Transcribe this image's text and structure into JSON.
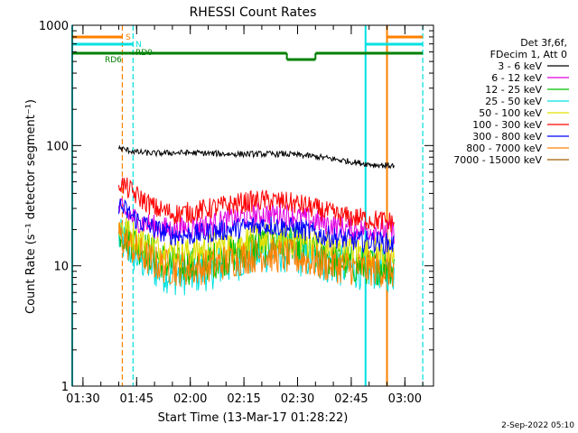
{
  "chart_data": {
    "type": "line",
    "title": "RHESSI Count Rates",
    "xlabel": "Start Time (13-Mar-17 01:28:22)",
    "ylabel": "Count Rate (s⁻¹ detector segment⁻¹)",
    "y_scale": "log",
    "ylim": [
      1,
      1000
    ],
    "xlim": [
      "01:27",
      "03:08"
    ],
    "x_ticks": [
      "01:30",
      "01:45",
      "02:00",
      "02:15",
      "02:30",
      "02:45",
      "03:00"
    ],
    "y_ticks": [
      "1",
      "10",
      "100",
      "1000"
    ],
    "grid": false,
    "legend_position": "right",
    "legend_header": [
      "Det 3f,6f,",
      "FDecim 1, Att 0"
    ],
    "series": [
      {
        "name": "3 - 6 keV",
        "color": "#000000",
        "start": "01:40",
        "end": "02:57",
        "values": [
          95,
          88,
          86,
          87,
          87,
          86,
          85,
          85,
          85,
          85,
          83,
          80,
          76,
          72,
          69,
          68
        ]
      },
      {
        "name": "6 - 12 keV",
        "color": "#e000e0",
        "start": "01:40",
        "end": "02:57",
        "values": [
          30,
          24,
          21,
          20,
          21,
          22,
          24,
          26,
          27,
          27,
          25,
          23,
          21,
          20,
          20,
          19
        ]
      },
      {
        "name": "12 - 25 keV",
        "color": "#00c000",
        "start": "01:40",
        "end": "02:57",
        "values": [
          20,
          15,
          12,
          10,
          10,
          11,
          12,
          14,
          15,
          15,
          14,
          12,
          11,
          10,
          10,
          10
        ]
      },
      {
        "name": "25 - 50 keV",
        "color": "#00e0e0",
        "start": "01:40",
        "end": "02:57",
        "values": [
          17,
          12,
          9.5,
          8.5,
          8.5,
          9.5,
          10.5,
          12,
          13,
          13,
          12,
          11,
          10,
          9.5,
          9.5,
          9
        ]
      },
      {
        "name": "50 - 100 keV",
        "color": "#e0e000",
        "start": "01:40",
        "end": "02:57",
        "values": [
          22,
          17,
          14,
          13,
          13,
          14,
          15,
          16,
          17,
          17,
          16,
          15,
          14,
          13,
          13,
          12
        ]
      },
      {
        "name": "100 - 300 keV",
        "color": "#ff0000",
        "start": "01:40",
        "end": "02:57",
        "values": [
          50,
          38,
          30,
          27,
          28,
          30,
          32,
          34,
          35,
          34,
          32,
          29,
          26,
          25,
          24,
          23
        ]
      },
      {
        "name": "300 - 800 keV",
        "color": "#0000ff",
        "start": "01:40",
        "end": "02:57",
        "values": [
          32,
          24,
          20,
          18,
          18,
          19,
          20,
          21,
          22,
          21,
          20,
          18,
          17,
          16,
          16,
          15
        ]
      },
      {
        "name": "800 - 7000 keV",
        "color": "#ff8000",
        "start": "01:40",
        "end": "02:57",
        "values": [
          18,
          13,
          10.5,
          9.5,
          9.5,
          10,
          11,
          12,
          12.5,
          12,
          11.5,
          10.5,
          10,
          9.5,
          9.5,
          9
        ]
      },
      {
        "name": "7000 - 15000 keV",
        "color": "#a06000",
        "start": "01:40",
        "end": "02:57",
        "values": []
      }
    ],
    "markers": {
      "vertical_lines": [
        {
          "time": "01:27",
          "color": "#00e0e0",
          "style": "solid"
        },
        {
          "time": "01:41",
          "color": "#ff8000",
          "style": "dashed"
        },
        {
          "time": "01:44",
          "color": "#00e0e0",
          "style": "dashed"
        },
        {
          "time": "02:49",
          "color": "#00e0e0",
          "style": "solid"
        },
        {
          "time": "02:55",
          "color": "#ff8000",
          "style": "solid"
        },
        {
          "time": "03:05",
          "color": "#00e0e0",
          "style": "dashed"
        }
      ],
      "bars": [
        {
          "label": "S",
          "color": "#ff8000",
          "segments": [
            [
              "01:27",
              "01:41"
            ],
            [
              "02:55",
              "03:05"
            ]
          ]
        },
        {
          "label": "N",
          "color": "#00e0e0",
          "segments": [
            [
              "01:27",
              "01:44"
            ],
            [
              "02:49",
              "03:05"
            ]
          ]
        },
        {
          "label": "RD0",
          "color": "#008000",
          "segments": [
            [
              "01:27",
              "02:27"
            ],
            [
              "02:35",
              "03:05"
            ]
          ]
        },
        {
          "label": "RD6",
          "color": "#008000",
          "segments": [
            [
              "02:27",
              "02:35"
            ]
          ]
        }
      ]
    },
    "timestamp": "2-Sep-2022 05:10"
  }
}
